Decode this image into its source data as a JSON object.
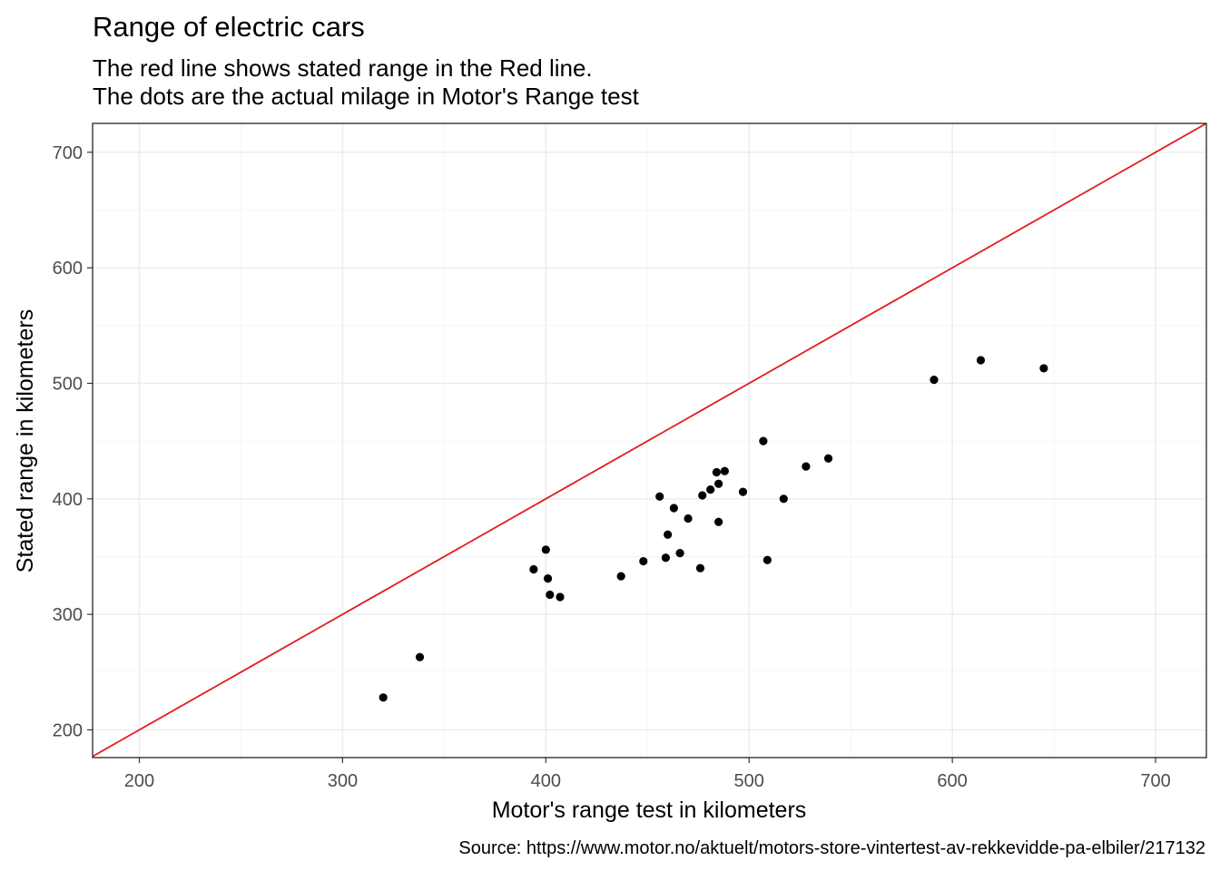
{
  "chart_data": {
    "type": "scatter",
    "title": "Range of electric cars",
    "subtitle": [
      "The red line shows stated range in the Red line.",
      "The dots are the actual milage in Motor's Range test"
    ],
    "xlabel": "Motor's range test in kilometers",
    "ylabel": "Stated range in kilometers",
    "caption": "Source: https://www.motor.no/aktuelt/motors-store-vintertest-av-rekkevidde-pa-elbiler/217132",
    "xlim": [
      177,
      725
    ],
    "ylim": [
      176,
      725
    ],
    "x_ticks": [
      200,
      300,
      400,
      500,
      600,
      700
    ],
    "y_ticks": [
      200,
      300,
      400,
      500,
      600,
      700
    ],
    "x_tick_labels": [
      "200",
      "300",
      "400",
      "500",
      "600",
      "700"
    ],
    "y_tick_labels": [
      "200",
      "300",
      "400",
      "500",
      "600",
      "700"
    ],
    "grid": true,
    "reference_line": {
      "slope": 1,
      "intercept": 0,
      "color": "#e41a1c"
    },
    "point_color": "#000000",
    "points": [
      {
        "x": 320,
        "y": 228
      },
      {
        "x": 338,
        "y": 263
      },
      {
        "x": 394,
        "y": 339
      },
      {
        "x": 400,
        "y": 356
      },
      {
        "x": 401,
        "y": 331
      },
      {
        "x": 402,
        "y": 317
      },
      {
        "x": 407,
        "y": 315
      },
      {
        "x": 437,
        "y": 333
      },
      {
        "x": 448,
        "y": 346
      },
      {
        "x": 456,
        "y": 402
      },
      {
        "x": 459,
        "y": 349
      },
      {
        "x": 460,
        "y": 369
      },
      {
        "x": 463,
        "y": 392
      },
      {
        "x": 466,
        "y": 353
      },
      {
        "x": 470,
        "y": 383
      },
      {
        "x": 476,
        "y": 340
      },
      {
        "x": 477,
        "y": 403
      },
      {
        "x": 481,
        "y": 408
      },
      {
        "x": 484,
        "y": 423
      },
      {
        "x": 485,
        "y": 413
      },
      {
        "x": 485,
        "y": 380
      },
      {
        "x": 488,
        "y": 424
      },
      {
        "x": 497,
        "y": 406
      },
      {
        "x": 507,
        "y": 450
      },
      {
        "x": 509,
        "y": 347
      },
      {
        "x": 517,
        "y": 400
      },
      {
        "x": 528,
        "y": 428
      },
      {
        "x": 539,
        "y": 435
      },
      {
        "x": 591,
        "y": 503
      },
      {
        "x": 614,
        "y": 520
      },
      {
        "x": 645,
        "y": 513
      }
    ]
  }
}
